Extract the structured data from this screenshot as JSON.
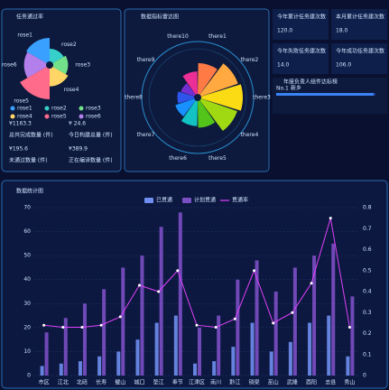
{
  "chart_data": [
    {
      "type": "rose",
      "title": "任务通过率",
      "categories": [
        "rose1",
        "rose2",
        "rose3",
        "rose4",
        "rose5",
        "rose6"
      ],
      "values": [
        30,
        15,
        18,
        22,
        40,
        28
      ],
      "colors": [
        "#3aa0ff",
        "#36cfc9",
        "#73e08a",
        "#ffd666",
        "#ff6b8a",
        "#b37feb"
      ]
    },
    {
      "type": "polar-bar",
      "title": "数据指标雷达图",
      "categories": [
        "there1",
        "there2",
        "there3",
        "there4",
        "there5",
        "there6",
        "there7",
        "there8",
        "there9",
        "there10"
      ],
      "values": [
        35,
        45,
        48,
        44,
        30,
        28,
        22,
        18,
        15,
        25
      ],
      "colors": [
        "#ff7a45",
        "#ffa940",
        "#fadb14",
        "#a0d911",
        "#52c41a",
        "#13c2c2",
        "#1890ff",
        "#2f54eb",
        "#722ed1",
        "#eb2f96"
      ]
    },
    {
      "type": "bar-line",
      "title": "数据统计图",
      "categories": [
        "市区",
        "江北",
        "北碚",
        "长寿",
        "璧山",
        "城口",
        "垫江",
        "奉节",
        "江津区",
        "南川",
        "黔江",
        "铜梁",
        "巫山",
        "武隆",
        "酉阳",
        "忠县",
        "秀山"
      ],
      "series": [
        {
          "name": "已贯通",
          "color": "#6f8ff0",
          "values": [
            4,
            5,
            6,
            8,
            10,
            15,
            22,
            25,
            5,
            6,
            12,
            22,
            10,
            14,
            22,
            25,
            8
          ]
        },
        {
          "name": "计划贯通",
          "color": "#7b4fc4",
          "values": [
            18,
            24,
            30,
            36,
            45,
            50,
            62,
            68,
            20,
            25,
            40,
            48,
            35,
            45,
            50,
            55,
            33
          ]
        },
        {
          "name": "贯通率",
          "color": "#e040fb",
          "axis": "y2",
          "values": [
            0.24,
            0.23,
            0.23,
            0.24,
            0.28,
            0.43,
            0.4,
            0.5,
            0.24,
            0.23,
            0.27,
            0.5,
            0.25,
            0.3,
            0.44,
            0.75,
            0.23
          ]
        }
      ],
      "ylim": [
        0,
        70
      ],
      "yticks": [
        0,
        10,
        20,
        30,
        40,
        50,
        60,
        70
      ],
      "y2lim": [
        0,
        0.8
      ],
      "y2ticks": [
        0,
        0.1,
        0.2,
        0.3,
        0.4,
        0.5,
        0.6,
        0.7,
        0.8
      ],
      "grid": true
    }
  ],
  "stats": {
    "left": [
      {
        "value": "¥1163.3",
        "label": "总共完成数量 (件)"
      },
      {
        "value": "¥ 24.6",
        "label": "今日构建总量 (件)"
      },
      {
        "value": "¥195.6",
        "label": "未通过数量 (件)"
      },
      {
        "value": "¥389.9",
        "label": "正在编译数量 (件)"
      }
    ],
    "right": [
      {
        "label": "今年累计任务建次数",
        "value": "120.0"
      },
      {
        "label": "本月累计任务建次数",
        "value": "18.0"
      },
      {
        "label": "今年失败任务建次数",
        "value": "14.0"
      },
      {
        "label": "今年成功任务建次数",
        "value": "106.0"
      }
    ],
    "ranking": {
      "title": "年度负责人组件达标榜",
      "rank": "No.1",
      "name": "新乡"
    }
  }
}
